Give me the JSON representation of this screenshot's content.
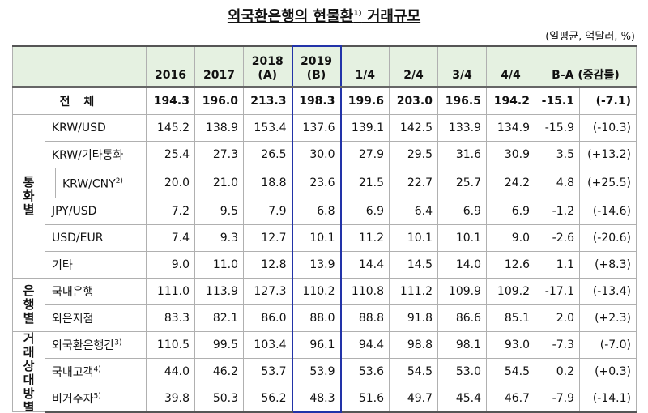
{
  "title": {
    "pre": "외국환은행의 현물환",
    "note": "1)",
    "post": " 거래규모"
  },
  "unit": "(일평균, 억달러, %)",
  "header": {
    "years": [
      {
        "text": "2016"
      },
      {
        "text": "2017"
      },
      {
        "text": "2018",
        "sub": "(A)"
      },
      {
        "text": "2019",
        "sub": "(B)"
      }
    ],
    "quarters": [
      "1/4",
      "2/4",
      "3/4",
      "4/4"
    ],
    "diff": "B-A (증감률)"
  },
  "total": {
    "label": "전 체",
    "values": [
      "194.3",
      "196.0",
      "213.3",
      "198.3",
      "199.6",
      "203.0",
      "196.5",
      "194.2",
      "-15.1"
    ],
    "rate": "(-7.1)"
  },
  "groups": [
    {
      "label": "통화별",
      "rows": [
        {
          "label": "KRW/USD",
          "values": [
            "145.2",
            "138.9",
            "153.4",
            "137.6",
            "139.1",
            "142.5",
            "133.9",
            "134.9",
            "-15.9"
          ],
          "rate": "(-10.3)"
        },
        {
          "label": "KRW/기타통화",
          "values": [
            "25.4",
            "27.3",
            "26.5",
            "30.0",
            "27.9",
            "29.5",
            "31.6",
            "30.9",
            "3.5"
          ],
          "rate": "(+13.2)"
        },
        {
          "label": "KRW/CNY",
          "note": "2)",
          "sub": true,
          "values": [
            "20.0",
            "21.0",
            "18.8",
            "23.6",
            "21.5",
            "22.7",
            "25.7",
            "24.2",
            "4.8"
          ],
          "rate": "(+25.5)"
        },
        {
          "label": "JPY/USD",
          "values": [
            "7.2",
            "9.5",
            "7.9",
            "6.8",
            "6.9",
            "6.4",
            "6.9",
            "6.9",
            "-1.2"
          ],
          "rate": "(-14.6)"
        },
        {
          "label": "USD/EUR",
          "values": [
            "7.4",
            "9.3",
            "12.7",
            "10.1",
            "11.2",
            "10.1",
            "10.1",
            "9.0",
            "-2.6"
          ],
          "rate": "(-20.6)"
        },
        {
          "label": "기타",
          "values": [
            "9.0",
            "11.0",
            "12.8",
            "13.9",
            "14.4",
            "14.5",
            "14.0",
            "12.6",
            "1.1"
          ],
          "rate": "(+8.3)"
        }
      ]
    },
    {
      "label": "은행별",
      "rows": [
        {
          "label": "국내은행",
          "values": [
            "111.0",
            "113.9",
            "127.3",
            "110.2",
            "110.8",
            "111.2",
            "109.9",
            "109.2",
            "-17.1"
          ],
          "rate": "(-13.4)"
        },
        {
          "label": "외은지점",
          "values": [
            "83.3",
            "82.1",
            "86.0",
            "88.0",
            "88.8",
            "91.8",
            "86.6",
            "85.1",
            "2.0"
          ],
          "rate": "(+2.3)"
        }
      ]
    },
    {
      "label": "거래상대방별",
      "rows": [
        {
          "label": "외국환은행간",
          "note": "3)",
          "values": [
            "110.5",
            "99.5",
            "103.4",
            "96.1",
            "94.4",
            "98.8",
            "98.1",
            "93.0",
            "-7.3"
          ],
          "rate": "(-7.0)"
        },
        {
          "label": "국내고객",
          "note": "4)",
          "values": [
            "44.0",
            "46.2",
            "53.7",
            "53.9",
            "53.6",
            "54.5",
            "53.0",
            "54.5",
            "0.2"
          ],
          "rate": "(+0.3)"
        },
        {
          "label": "비거주자",
          "note": "5)",
          "values": [
            "39.8",
            "50.3",
            "56.2",
            "48.3",
            "51.6",
            "49.7",
            "45.4",
            "46.7",
            "-7.9"
          ],
          "rate": "(-14.1)"
        }
      ]
    }
  ]
}
